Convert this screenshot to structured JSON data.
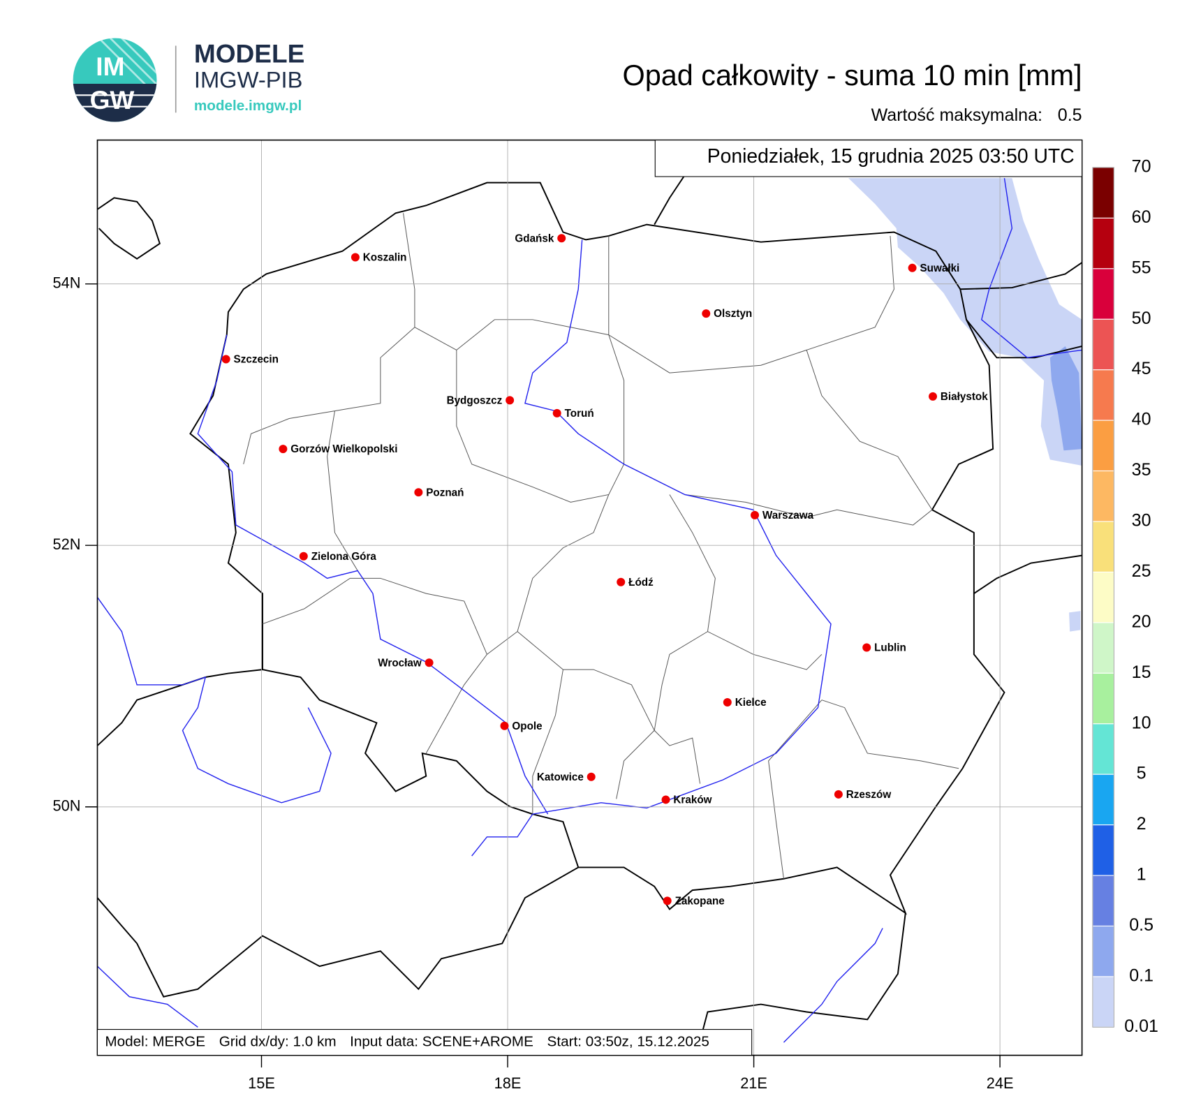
{
  "logo": {
    "mark": [
      "IM",
      "GW"
    ],
    "name": "MODELE",
    "org": "IMGW-PIB",
    "url": "modele.imgw.pl"
  },
  "title": "Opad całkowity - suma 10 min [mm]",
  "max_value": {
    "label": "Wartość maksymalna:",
    "value": 0.5
  },
  "date": "Poniedziałek, 15 grudnia 2025 03:50 UTC",
  "map": {
    "xlim": [
      13,
      25
    ],
    "ylim": [
      48.1,
      55.1
    ],
    "xticks": [
      {
        "value": 15,
        "label": "15E"
      },
      {
        "value": 18,
        "label": "18E"
      },
      {
        "value": 21,
        "label": "21E"
      },
      {
        "value": 24,
        "label": "24E"
      }
    ],
    "yticks": [
      {
        "value": 54,
        "label": "54N"
      },
      {
        "value": 52,
        "label": "52N"
      },
      {
        "value": 50,
        "label": "50N"
      }
    ],
    "grid": true
  },
  "cities": [
    "Gdańsk",
    "Koszalin",
    "Szczecin",
    "Suwałki",
    "Olsztyn",
    "Białystok",
    "Bydgoszcz",
    "Toruń",
    "Gorzów Wielkopolski",
    "Poznań",
    "Warszawa",
    "Zielona Góra",
    "Łódź",
    "Lublin",
    "Wrocław",
    "Kielce",
    "Opole",
    "Katowice",
    "Rzeszów",
    "Kraków",
    "Zakopane"
  ],
  "colorbar": {
    "levels": [
      0.01,
      0.1,
      0.5,
      1,
      2,
      5,
      10,
      15,
      20,
      25,
      30,
      35,
      40,
      45,
      50,
      55,
      60,
      70
    ],
    "colors": [
      "#cad5f6",
      "#8ea8ee",
      "#6680e2",
      "#1f60e6",
      "#19a6f1",
      "#64e5d5",
      "#a8f09e",
      "#cff6c8",
      "#fdfcc6",
      "#f9e07a",
      "#fdb862",
      "#fb9e42",
      "#f67a4e",
      "#ec5454",
      "#d9003b",
      "#b5000f",
      "#7a0000"
    ]
  },
  "footer": [
    "Model: MERGE",
    "Grid dx/dy: 1.0 km",
    "Input data: SCENE+AROME",
    "Start: 03:50z, 15.12.2025"
  ]
}
